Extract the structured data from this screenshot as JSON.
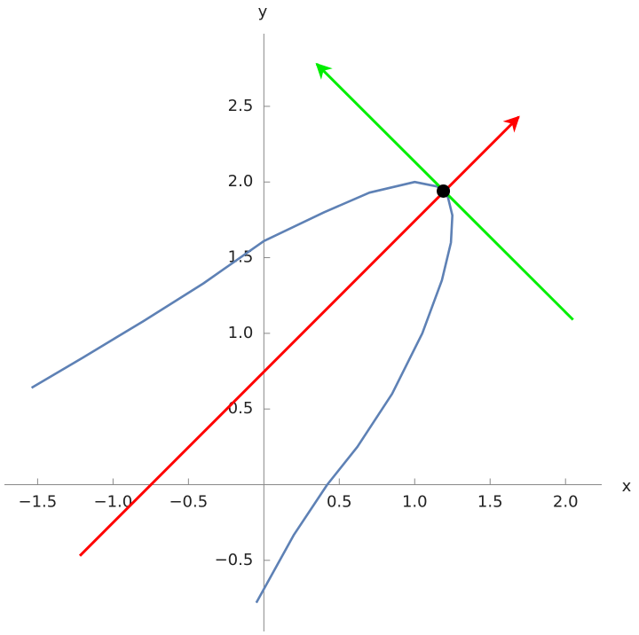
{
  "chart_data": {
    "type": "line",
    "xlabel": "x",
    "ylabel": "y",
    "xlim": [
      -1.72,
      2.24
    ],
    "ylim": [
      -0.97,
      2.98
    ],
    "xticks": [
      {
        "value": -1.5,
        "label": "−1.5"
      },
      {
        "value": -1,
        "label": "−1.0"
      },
      {
        "value": -0.5,
        "label": "−0.5"
      },
      0.5,
      {
        "value": 1,
        "label": "1.0"
      },
      1.5,
      {
        "value": 2,
        "label": "2.0"
      }
    ],
    "yticks": [
      {
        "value": -0.5,
        "label": "−0.5"
      },
      0.5,
      {
        "value": 1,
        "label": "1.0"
      },
      1.5,
      {
        "value": 2,
        "label": "2.0"
      },
      2.5
    ],
    "series": [
      {
        "color": "#5e81b5",
        "x": [
          -1.54,
          -1.2,
          -0.8,
          -0.4,
          0,
          0.4,
          0.7,
          1.0,
          1.15,
          1.22,
          1.25,
          1.24,
          1.18,
          1.05,
          0.85,
          0.62,
          0.42,
          0.2,
          -0.05
        ],
        "y": [
          0.64,
          0.84,
          1.08,
          1.33,
          1.61,
          1.8,
          1.93,
          2.0,
          1.97,
          1.9,
          1.78,
          1.6,
          1.35,
          1.0,
          0.6,
          0.25,
          0,
          -0.33,
          -0.78
        ]
      },
      {
        "color": "#ff0000",
        "arrow": true,
        "x": [
          -1.22,
          1.69
        ],
        "y": [
          -0.47,
          2.43
        ]
      },
      {
        "color": "#00ee00",
        "arrow": true,
        "x": [
          2.05,
          0.35
        ],
        "y": [
          1.09,
          2.78
        ]
      },
      {
        "color": "#000000",
        "marker": true,
        "x": [
          1.19
        ],
        "y": [
          1.94
        ]
      }
    ]
  }
}
